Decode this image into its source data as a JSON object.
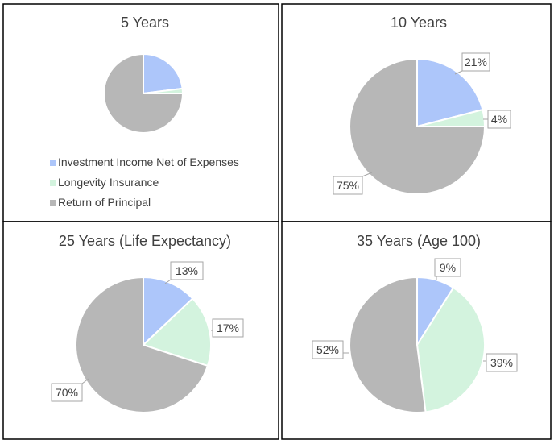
{
  "colors": {
    "investment": "#adc6fa",
    "longevity": "#d3f3de",
    "principal": "#b7b7b7",
    "border": "#000000",
    "callout_border": "#a6a6a6",
    "text": "#404040"
  },
  "chart_data": [
    {
      "type": "pie",
      "title": "5 Years",
      "categories": [
        "Investment Income Net of Expenses",
        "Longevity Insurance",
        "Return of Principal"
      ],
      "values": [
        23,
        2,
        75
      ],
      "data_labels": [
        "",
        "",
        ""
      ],
      "legend": {
        "position": "bottom-left",
        "entries": [
          "Investment Income Net of Expenses",
          "Longevity Insurance",
          "Return of Principal"
        ]
      }
    },
    {
      "type": "pie",
      "title": "10 Years",
      "categories": [
        "Investment Income Net of Expenses",
        "Longevity Insurance",
        "Return of Principal"
      ],
      "values": [
        21,
        4,
        75
      ],
      "data_labels": [
        "21%",
        "4%",
        "75%"
      ]
    },
    {
      "type": "pie",
      "title": "25 Years (Life Expectancy)",
      "categories": [
        "Investment Income Net of Expenses",
        "Longevity Insurance",
        "Return of Principal"
      ],
      "values": [
        13,
        17,
        70
      ],
      "data_labels": [
        "13%",
        "17%",
        "70%"
      ]
    },
    {
      "type": "pie",
      "title": "35 Years (Age 100)",
      "categories": [
        "Investment Income Net of Expenses",
        "Longevity Insurance",
        "Return of Principal"
      ],
      "values": [
        9,
        39,
        52
      ],
      "data_labels": [
        "9%",
        "39%",
        "52%"
      ]
    }
  ]
}
